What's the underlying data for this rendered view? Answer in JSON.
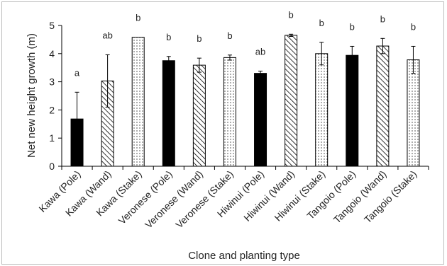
{
  "chart_data": {
    "type": "bar",
    "title": "",
    "xlabel": "Clone and planting type",
    "ylabel": "Net new height growth (m)",
    "ylim": [
      0,
      5
    ],
    "yticks": [
      0,
      1,
      2,
      3,
      4,
      5
    ],
    "grid": false,
    "legend": "none",
    "categories": [
      "Kawa (Pole)",
      "Kawa (Wand)",
      "Kawa (Stake)",
      "Veronese (Pole)",
      "Veronese (Wand)",
      "Veronese (Stake)",
      "Hiwinui (Pole)",
      "Hiwinui (Wand)",
      "Hiwinui (Stake)",
      "Tangoio (Pole)",
      "Tangoio (Wand)",
      "Tangoio (Stake)"
    ],
    "values": [
      1.68,
      3.03,
      4.58,
      3.75,
      3.59,
      3.86,
      3.3,
      4.65,
      4.0,
      3.94,
      4.27,
      3.78
    ],
    "errors": [
      0.95,
      0.93,
      0.0,
      0.15,
      0.25,
      0.09,
      0.08,
      0.04,
      0.4,
      0.32,
      0.27,
      0.48
    ],
    "significance_letters": [
      "a",
      "ab",
      "b",
      "b",
      "b",
      "b",
      "ab",
      "b",
      "b",
      "b",
      "b",
      "b"
    ],
    "fill_patterns": [
      "solid",
      "hatch",
      "dots",
      "solid",
      "hatch",
      "dots",
      "solid",
      "hatch",
      "dots",
      "solid",
      "hatch",
      "dots"
    ],
    "colors": {
      "bar": "#000000",
      "axis": "#000000",
      "frame": "#bdbdbd"
    }
  }
}
